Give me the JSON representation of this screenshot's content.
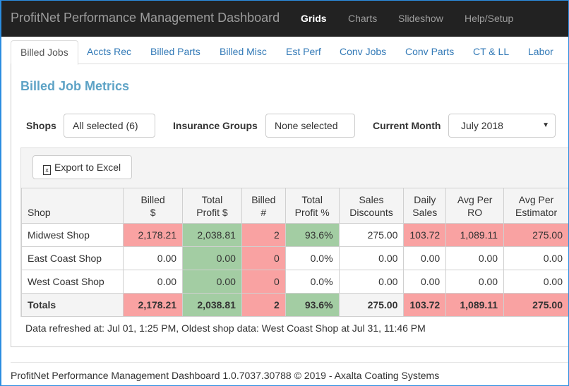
{
  "nav": {
    "brand": "ProfitNet Performance Management Dashboard",
    "links": [
      "Grids",
      "Charts",
      "Slideshow",
      "Help/Setup"
    ],
    "active": "Grids"
  },
  "tabs": [
    "Billed Jobs",
    "Accts Rec",
    "Billed Parts",
    "Billed Misc",
    "Est Perf",
    "Conv Jobs",
    "Conv Parts",
    "CT & LL",
    "Labor"
  ],
  "active_tab": "Billed Jobs",
  "page_title": "Billed Job Metrics",
  "filters": {
    "shops_label": "Shops",
    "shops_value": "All selected (6)",
    "ins_label": "Insurance Groups",
    "ins_value": "None selected",
    "month_label": "Current Month",
    "month_value": "July 2018"
  },
  "export_label": "Export to Excel",
  "table": {
    "headers": [
      [
        "Shop"
      ],
      [
        "Billed",
        "$"
      ],
      [
        "Total",
        "Profit $"
      ],
      [
        "Billed",
        "#"
      ],
      [
        "Total",
        "Profit %"
      ],
      [
        "Sales",
        "Discounts"
      ],
      [
        "Daily",
        "Sales"
      ],
      [
        "Avg Per",
        "RO"
      ],
      [
        "Avg Per",
        "Estimator"
      ]
    ],
    "rows": [
      {
        "shop": "Midwest Shop",
        "cells": [
          {
            "v": "2,178.21",
            "s": "bad"
          },
          {
            "v": "2,038.81",
            "s": "good"
          },
          {
            "v": "2",
            "s": "bad"
          },
          {
            "v": "93.6%",
            "s": "good"
          },
          {
            "v": "275.00",
            "s": ""
          },
          {
            "v": "103.72",
            "s": "bad"
          },
          {
            "v": "1,089.11",
            "s": "bad"
          },
          {
            "v": "275.00",
            "s": "bad"
          }
        ]
      },
      {
        "shop": "East Coast Shop",
        "cells": [
          {
            "v": "0.00",
            "s": ""
          },
          {
            "v": "0.00",
            "s": "good"
          },
          {
            "v": "0",
            "s": "bad"
          },
          {
            "v": "0.0%",
            "s": ""
          },
          {
            "v": "0.00",
            "s": ""
          },
          {
            "v": "0.00",
            "s": ""
          },
          {
            "v": "0.00",
            "s": ""
          },
          {
            "v": "0.00",
            "s": ""
          }
        ]
      },
      {
        "shop": "West Coast Shop",
        "cells": [
          {
            "v": "0.00",
            "s": ""
          },
          {
            "v": "0.00",
            "s": "good"
          },
          {
            "v": "0",
            "s": "bad"
          },
          {
            "v": "0.0%",
            "s": ""
          },
          {
            "v": "0.00",
            "s": ""
          },
          {
            "v": "0.00",
            "s": ""
          },
          {
            "v": "0.00",
            "s": ""
          },
          {
            "v": "0.00",
            "s": ""
          }
        ]
      }
    ],
    "totals": {
      "shop": "Totals",
      "cells": [
        {
          "v": "2,178.21",
          "s": "bad"
        },
        {
          "v": "2,038.81",
          "s": "good"
        },
        {
          "v": "2",
          "s": "bad"
        },
        {
          "v": "93.6%",
          "s": "good"
        },
        {
          "v": "275.00",
          "s": "plain"
        },
        {
          "v": "103.72",
          "s": "bad"
        },
        {
          "v": "1,089.11",
          "s": "bad"
        },
        {
          "v": "275.00",
          "s": "bad"
        }
      ]
    }
  },
  "refresh_text": "Data refreshed at: Jul 01, 1:25 PM, Oldest shop data: West Coast Shop at Jul 31, 11:46 PM",
  "footer": "ProfitNet Performance Management Dashboard 1.0.7037.30788 © 2019 - Axalta Coating Systems",
  "colors": {
    "bad": "#f9a2a2",
    "good": "#a3cda3",
    "nav_bg": "#222222",
    "link": "#337ab7",
    "title": "#5ea3c6"
  }
}
